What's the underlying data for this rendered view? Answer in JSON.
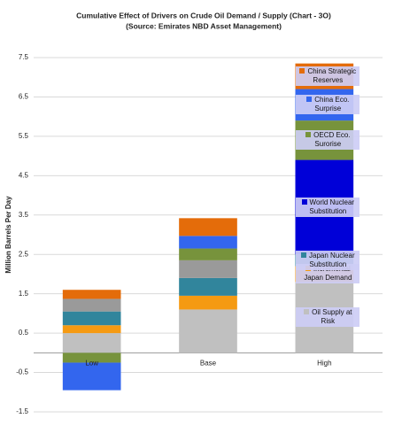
{
  "chart_data": {
    "type": "stacked_bar",
    "title": "Cumulative Effect of Drivers on Crude Oil Demand / Supply (Chart - 3O)",
    "subtitle": "(Source: Emirates NBD Asset Management)",
    "y_label": "Million Barrels Per Day",
    "categories": [
      "Low",
      "Base",
      "High"
    ],
    "series": [
      {
        "name": "Oil Supply at Risk",
        "color": "#c0c0c0",
        "values": [
          0.5,
          1.1,
          1.8
        ]
      },
      {
        "name": "Incremental Japan Demand",
        "color": "#f59a12",
        "values": [
          0.2,
          0.35,
          0.4
        ]
      },
      {
        "name": "Japan Nuclear Substitution",
        "color": "#31859c",
        "values": [
          0.35,
          0.45,
          0.3
        ]
      },
      {
        "name": "World Nuclear Substitution",
        "color": "#9a9a9a",
        "colors": [
          "#9a9a9a",
          "#9a9a9a",
          "#0000d8"
        ],
        "values": [
          0.32,
          0.45,
          2.4
        ]
      },
      {
        "name": "OECD Eco. Surorise",
        "color": "#77933c",
        "values": [
          -0.25,
          0.3,
          1.0
        ]
      },
      {
        "name": "China Eco. Surprise",
        "color": "#3366ee",
        "values": [
          -0.7,
          0.32,
          0.8
        ]
      },
      {
        "name": "China Strategic Reserves",
        "color": "#e46c0a",
        "values": [
          0.23,
          0.45,
          0.65
        ]
      }
    ],
    "ylim": [
      -1.5,
      7.5
    ],
    "yticks": [
      -1.5,
      -0.5,
      0.5,
      1.5,
      2.5,
      3.5,
      4.5,
      5.5,
      6.5,
      7.5
    ],
    "grid": true
  }
}
